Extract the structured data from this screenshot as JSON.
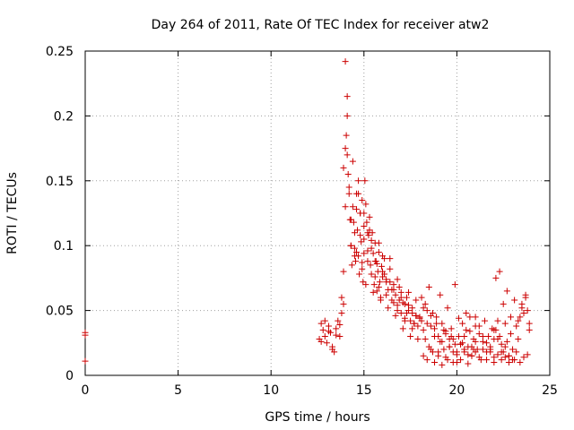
{
  "chart_data": {
    "type": "scatter",
    "title": "Day 264 of 2011, Rate Of TEC Index for receiver atw2",
    "xlabel": "GPS time / hours",
    "ylabel": "ROTI / TECUs",
    "xlim": [
      0,
      25
    ],
    "ylim": [
      0,
      0.25
    ],
    "xticks": [
      0,
      5,
      10,
      15,
      20,
      25
    ],
    "xtick_labels": [
      "0",
      "5",
      "10",
      "15",
      "20",
      "25"
    ],
    "yticks": [
      0,
      0.05,
      0.1,
      0.15,
      0.2,
      0.25
    ],
    "ytick_labels": [
      "0",
      "0.05",
      "0.1",
      "0.15",
      "0.2",
      "0.25"
    ],
    "grid": true,
    "marker": "+",
    "color": "#cc0000",
    "series": [
      {
        "x": [
          0.0,
          0.0,
          0.0,
          12.6,
          12.7,
          12.8,
          12.9,
          13.0,
          13.1,
          13.2,
          13.3,
          13.4,
          13.5,
          13.6,
          13.7,
          13.8,
          13.9,
          12.7,
          12.9,
          13.1,
          13.3,
          13.5,
          13.7,
          13.8,
          13.9,
          14.0,
          14.0,
          14.1,
          14.1,
          14.0,
          13.9,
          14.2,
          14.3,
          14.4,
          14.5,
          14.6,
          14.7,
          14.8,
          14.9,
          15.0,
          14.05,
          14.1,
          14.15,
          14.2,
          14.25,
          14.3,
          14.35,
          14.4,
          14.45,
          14.5,
          14.55,
          14.6,
          14.65,
          14.7,
          14.75,
          14.8,
          14.85,
          14.9,
          14.95,
          15.0,
          15.05,
          15.1,
          15.15,
          15.2,
          15.25,
          15.3,
          15.35,
          15.4,
          15.45,
          15.5,
          15.55,
          15.6,
          15.65,
          15.7,
          15.75,
          15.8,
          15.85,
          15.9,
          15.95,
          16.0,
          16.1,
          16.2,
          16.3,
          16.4,
          16.5,
          16.6,
          16.7,
          16.8,
          16.9,
          17.0,
          17.1,
          17.2,
          17.3,
          17.4,
          17.5,
          17.6,
          17.7,
          17.8,
          17.9,
          18.0,
          14.3,
          14.5,
          14.7,
          14.9,
          15.1,
          15.3,
          15.5,
          15.7,
          15.9,
          16.1,
          16.3,
          16.5,
          16.7,
          16.9,
          17.1,
          17.3,
          17.5,
          17.7,
          17.9,
          14.6,
          14.8,
          15.0,
          15.2,
          15.4,
          15.6,
          15.8,
          16.0,
          16.2,
          16.4,
          16.6,
          16.8,
          17.0,
          17.2,
          17.4,
          17.6,
          17.8,
          18.1,
          18.2,
          18.3,
          18.4,
          18.5,
          18.6,
          18.7,
          18.8,
          18.9,
          19.0,
          19.1,
          19.2,
          19.3,
          19.4,
          19.5,
          19.6,
          19.7,
          19.8,
          19.9,
          20.0,
          18.1,
          18.3,
          18.5,
          18.7,
          18.9,
          19.1,
          19.3,
          19.5,
          19.7,
          19.9,
          20.1,
          20.3,
          20.5,
          20.7,
          20.9,
          18.2,
          18.4,
          18.6,
          18.8,
          19.0,
          19.2,
          19.4,
          19.6,
          19.8,
          20.0,
          20.2,
          20.4,
          20.6,
          20.8,
          21.0,
          20.1,
          20.2,
          20.3,
          20.4,
          20.5,
          20.6,
          20.7,
          20.8,
          20.9,
          21.0,
          21.1,
          21.2,
          21.3,
          21.4,
          21.5,
          21.6,
          21.7,
          21.8,
          21.9,
          22.0,
          21.0,
          21.2,
          21.4,
          21.6,
          21.8,
          22.0,
          22.2,
          22.4,
          22.6,
          22.8,
          23.0,
          23.2,
          23.4,
          23.6,
          23.8,
          22.0,
          22.1,
          22.2,
          22.3,
          22.4,
          22.5,
          22.6,
          22.7,
          22.8,
          22.9,
          23.0,
          23.1,
          23.2,
          23.3,
          23.4,
          23.5,
          23.6,
          23.7,
          23.8,
          23.9,
          22.1,
          22.3,
          22.5,
          22.7,
          22.9,
          23.1,
          23.3,
          23.5,
          23.7,
          23.9,
          15.0,
          15.2,
          15.4,
          15.6,
          15.8,
          16.0,
          16.2,
          16.4,
          16.6,
          16.8,
          17.0,
          17.2,
          17.4,
          17.6,
          17.8,
          18.0,
          18.2,
          18.4,
          18.6,
          18.8,
          19.0,
          19.2,
          19.4,
          19.6,
          19.8,
          20.0,
          20.2,
          20.4,
          20.6,
          20.8,
          21.0,
          21.2,
          21.4,
          21.6,
          21.8,
          22.0,
          22.2,
          22.4,
          22.6,
          22.8
        ],
        "y": [
          0.033,
          0.031,
          0.011,
          0.028,
          0.04,
          0.035,
          0.03,
          0.025,
          0.038,
          0.033,
          0.022,
          0.018,
          0.036,
          0.042,
          0.03,
          0.048,
          0.055,
          0.026,
          0.042,
          0.034,
          0.02,
          0.031,
          0.039,
          0.06,
          0.08,
          0.13,
          0.175,
          0.2,
          0.215,
          0.242,
          0.16,
          0.14,
          0.12,
          0.165,
          0.11,
          0.095,
          0.15,
          0.125,
          0.135,
          0.105,
          0.185,
          0.17,
          0.155,
          0.145,
          0.12,
          0.1,
          0.085,
          0.13,
          0.118,
          0.098,
          0.088,
          0.14,
          0.112,
          0.092,
          0.078,
          0.125,
          0.103,
          0.087,
          0.072,
          0.115,
          0.15,
          0.132,
          0.118,
          0.096,
          0.108,
          0.122,
          0.085,
          0.078,
          0.11,
          0.094,
          0.07,
          0.102,
          0.088,
          0.065,
          0.08,
          0.095,
          0.072,
          0.06,
          0.084,
          0.076,
          0.09,
          0.074,
          0.066,
          0.082,
          0.058,
          0.07,
          0.062,
          0.054,
          0.068,
          0.048,
          0.056,
          0.044,
          0.06,
          0.05,
          0.042,
          0.052,
          0.04,
          0.046,
          0.038,
          0.044,
          0.1,
          0.092,
          0.14,
          0.082,
          0.07,
          0.112,
          0.064,
          0.086,
          0.058,
          0.078,
          0.052,
          0.066,
          0.046,
          0.058,
          0.036,
          0.048,
          0.03,
          0.04,
          0.028,
          0.128,
          0.108,
          0.094,
          0.088,
          0.104,
          0.076,
          0.068,
          0.092,
          0.062,
          0.072,
          0.056,
          0.05,
          0.064,
          0.042,
          0.054,
          0.036,
          0.046,
          0.042,
          0.035,
          0.028,
          0.05,
          0.022,
          0.038,
          0.018,
          0.03,
          0.045,
          0.015,
          0.026,
          0.04,
          0.02,
          0.032,
          0.012,
          0.028,
          0.036,
          0.018,
          0.024,
          0.01,
          0.06,
          0.055,
          0.068,
          0.048,
          0.04,
          0.062,
          0.035,
          0.052,
          0.03,
          0.07,
          0.044,
          0.025,
          0.048,
          0.034,
          0.02,
          0.015,
          0.012,
          0.02,
          0.01,
          0.018,
          0.008,
          0.014,
          0.022,
          0.01,
          0.016,
          0.012,
          0.02,
          0.009,
          0.015,
          0.018,
          0.03,
          0.024,
          0.04,
          0.018,
          0.035,
          0.022,
          0.045,
          0.015,
          0.028,
          0.038,
          0.02,
          0.032,
          0.012,
          0.026,
          0.042,
          0.018,
          0.03,
          0.022,
          0.036,
          0.014,
          0.045,
          0.038,
          0.03,
          0.025,
          0.02,
          0.035,
          0.028,
          0.018,
          0.022,
          0.015,
          0.012,
          0.018,
          0.01,
          0.014,
          0.016,
          0.028,
          0.035,
          0.042,
          0.03,
          0.024,
          0.018,
          0.04,
          0.026,
          0.015,
          0.032,
          0.02,
          0.012,
          0.038,
          0.028,
          0.045,
          0.055,
          0.048,
          0.062,
          0.05,
          0.04,
          0.075,
          0.08,
          0.055,
          0.065,
          0.045,
          0.058,
          0.042,
          0.052,
          0.06,
          0.035,
          0.125,
          0.11,
          0.098,
          0.088,
          0.102,
          0.08,
          0.072,
          0.09,
          0.066,
          0.074,
          0.06,
          0.055,
          0.064,
          0.048,
          0.058,
          0.045,
          0.052,
          0.04,
          0.046,
          0.036,
          0.03,
          0.026,
          0.034,
          0.022,
          0.028,
          0.018,
          0.024,
          0.03,
          0.016,
          0.022,
          0.026,
          0.014,
          0.02,
          0.012,
          0.018,
          0.01,
          0.016,
          0.012,
          0.014,
          0.01
        ]
      }
    ]
  }
}
